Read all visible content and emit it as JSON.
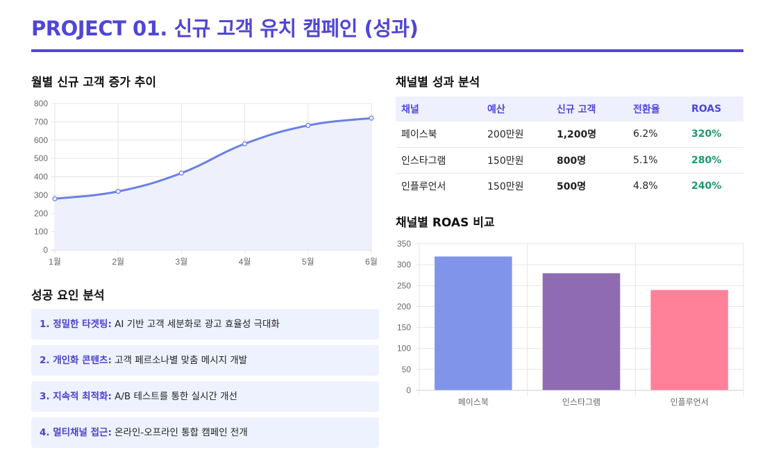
{
  "title": "PROJECT 01. 신규 고객 유치 캠페인 (성과)",
  "sections": {
    "trend": "월별 신규 고객 증가 추이",
    "factors": "성공 요인 분석",
    "channel": "채널별 성과 분석",
    "roas": "채널별 ROAS 비교"
  },
  "table": {
    "headers": [
      "채널",
      "예산",
      "신규 고객",
      "전환율",
      "ROAS"
    ],
    "rows": [
      [
        "페이스북",
        "200만원",
        "1,200명",
        "6.2%",
        "320%"
      ],
      [
        "인스타그램",
        "150만원",
        "800명",
        "5.1%",
        "280%"
      ],
      [
        "인플루언서",
        "150만원",
        "500명",
        "4.8%",
        "240%"
      ]
    ]
  },
  "factors": [
    {
      "label": "1. 정밀한 타겟팅:",
      "text": " AI 기반 고객 세분화로 광고 효율성 극대화"
    },
    {
      "label": "2. 개인화 콘텐츠:",
      "text": " 고객 페르소나별 맞춤 메시지 개발"
    },
    {
      "label": "3. 지속적 최적화:",
      "text": " A/B 테스트를 통한 실시간 개선"
    },
    {
      "label": "4. 멀티채널 접근:",
      "text": " 온라인-오프라인 통합 캠페인 전개"
    }
  ],
  "colors": {
    "accent": "#5046d6",
    "line": "#6b7fe3",
    "fill": "#eef1fc",
    "roas_green": "#1a9a6a",
    "bars": [
      "#8094ea",
      "#8e6bb2",
      "#ff8199"
    ]
  },
  "chart_data": [
    {
      "type": "line",
      "categories": [
        "1월",
        "2월",
        "3월",
        "4월",
        "5월",
        "6월"
      ],
      "values": [
        280,
        320,
        420,
        580,
        680,
        720
      ],
      "ylim": [
        0,
        800
      ],
      "yticks": [
        0,
        100,
        200,
        300,
        400,
        500,
        600,
        700,
        800
      ],
      "grid": true,
      "fill": true
    },
    {
      "type": "bar",
      "categories": [
        "페이스북",
        "인스타그램",
        "인플루언서"
      ],
      "values": [
        320,
        280,
        240
      ],
      "ylim": [
        0,
        350
      ],
      "yticks": [
        0,
        50,
        100,
        150,
        200,
        250,
        300,
        350
      ],
      "grid": true
    }
  ]
}
